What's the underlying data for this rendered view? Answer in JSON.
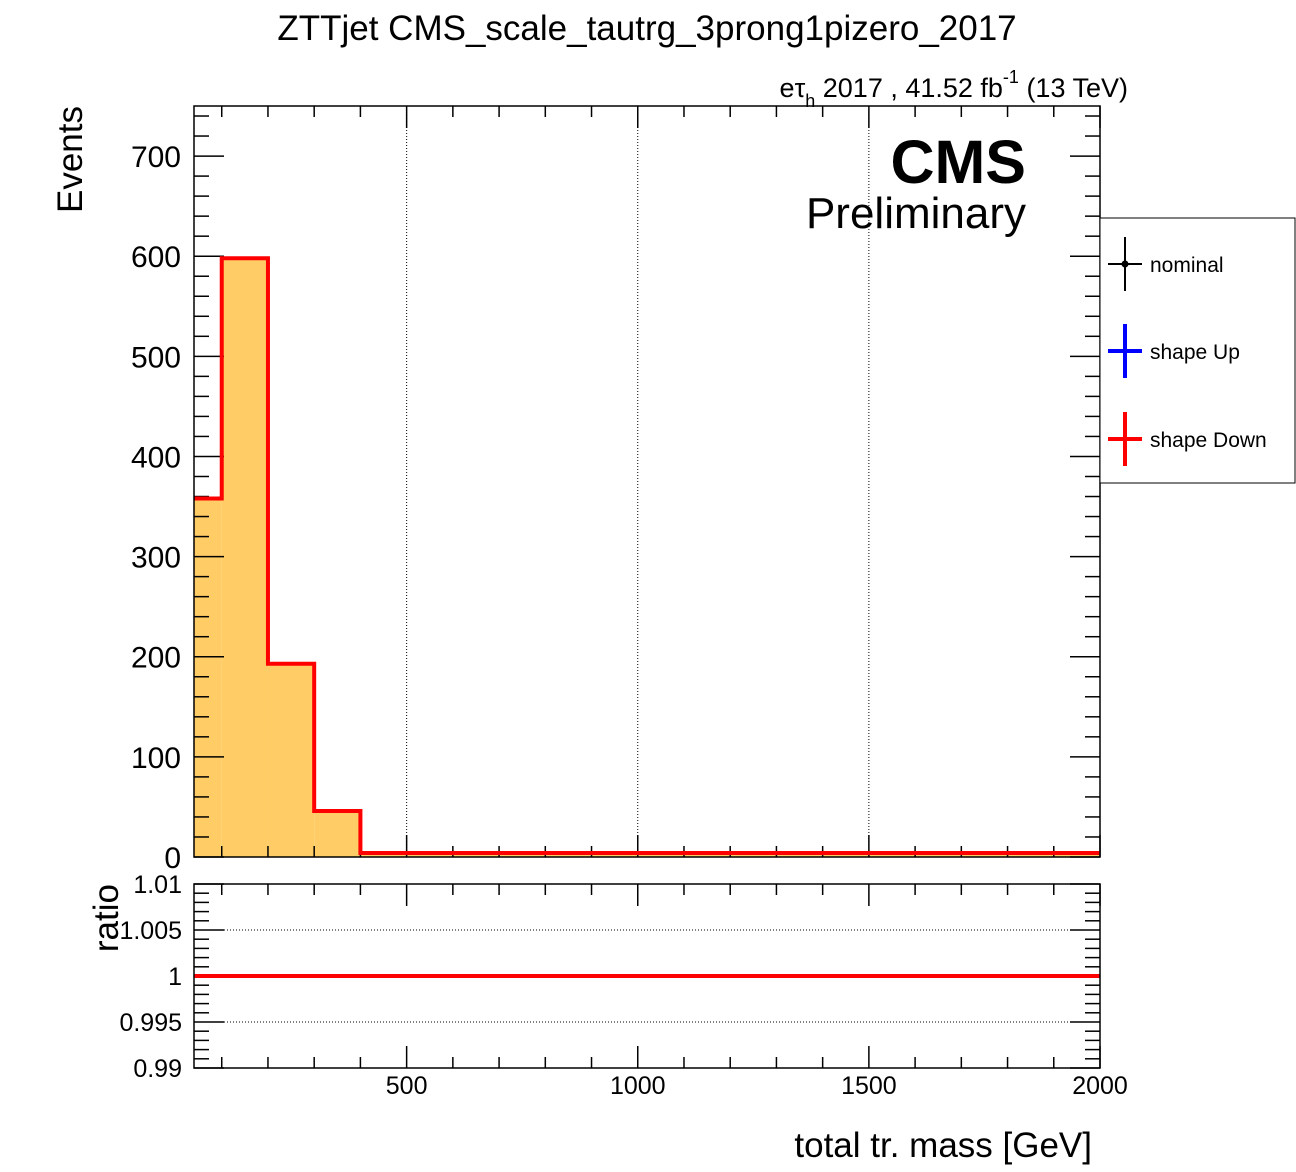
{
  "chart_data": [
    {
      "type": "bar",
      "title": "ZTTjet CMS_scale_tautrg_3prong1pizero_2017",
      "subtitle_prefix": "e",
      "subtitle_tau": "τ",
      "subtitle_sub": "h",
      "subtitle_mid": " 2017 , 41.52 fb",
      "subtitle_sup": "-1",
      "subtitle_suffix": " (13 TeV)",
      "cms_label": "CMS",
      "cms_sublabel": "Preliminary",
      "ylabel": "Events",
      "xlim": [
        40,
        2000
      ],
      "ylim": [
        0,
        750
      ],
      "yticks": [
        0,
        100,
        200,
        300,
        400,
        500,
        600,
        700
      ],
      "xgrid": [
        500,
        1000,
        1500
      ],
      "bins": [
        40,
        100,
        200,
        300,
        400,
        2000
      ],
      "nominal_values": [
        358,
        598,
        193,
        46,
        4
      ],
      "shape_down_values": [
        358,
        598,
        193,
        46,
        4
      ],
      "colors": {
        "fill": "#ffcc66",
        "down": "#ff0000",
        "up": "#0000ff",
        "nominal": "#000000"
      },
      "legend": {
        "placement": "right, outside",
        "entries": [
          {
            "label": "nominal",
            "color": "#000000"
          },
          {
            "label": "shape Up",
            "color": "#0000ff"
          },
          {
            "label": "shape Down",
            "color": "#ff0000"
          }
        ]
      }
    },
    {
      "type": "line",
      "ylabel": "ratio",
      "xlabel": "total tr. mass [GeV]",
      "xlim": [
        40,
        2000
      ],
      "ylim": [
        0.99,
        1.01
      ],
      "xticks": [
        500,
        1000,
        1500,
        2000
      ],
      "yticks": [
        {
          "value": 0.99,
          "label": "0.99"
        },
        {
          "value": 0.995,
          "label": "0.995"
        },
        {
          "value": 1.0,
          "label": "1"
        },
        {
          "value": 1.005,
          "label": "1.005"
        },
        {
          "value": 1.01,
          "label": "1.01"
        }
      ],
      "ygrid": [
        0.995,
        1.0,
        1.005
      ],
      "series": [
        {
          "name": "shape Down",
          "x": [
            40,
            2000
          ],
          "y": [
            1.0,
            1.0
          ],
          "color": "#ff0000"
        }
      ]
    }
  ]
}
